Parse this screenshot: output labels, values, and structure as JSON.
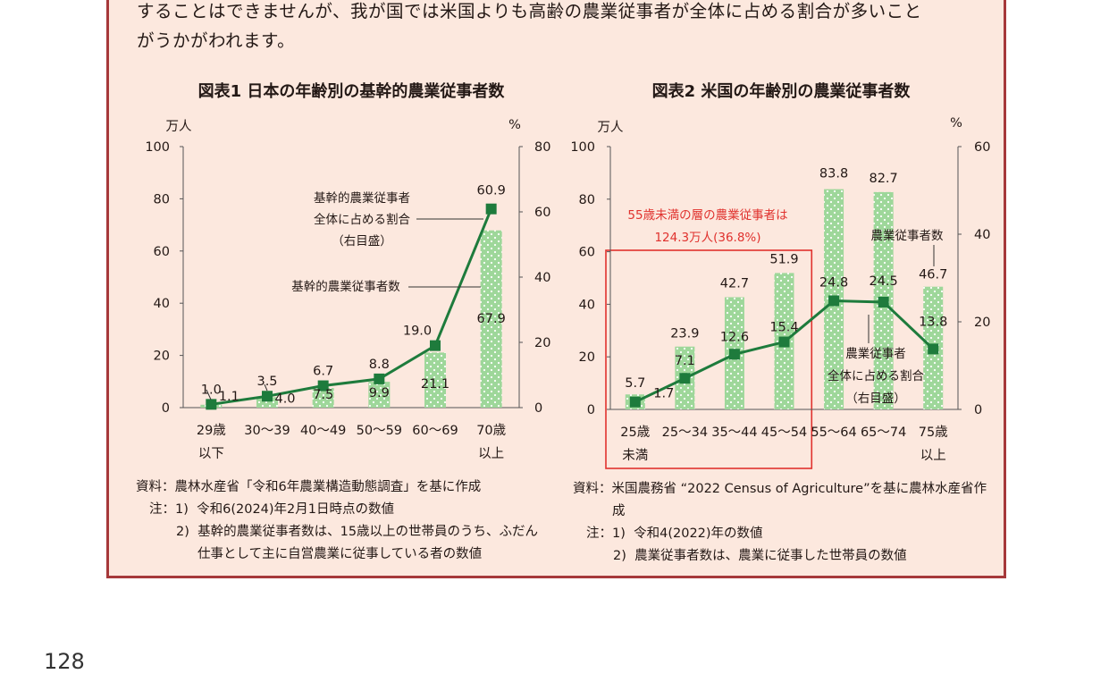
{
  "intro": {
    "line1": "することはできませんが、我が国では米国よりも高齢の農業従事者が全体に占める割合が多いこと",
    "line2": "がうかがわれます。"
  },
  "colors": {
    "bar": "#9ed79a",
    "bar_dots": "#ffffff",
    "line": "#1e7b3c",
    "marker": "#1e7b3c",
    "highlight": "#e0322e",
    "frame": "#a6383a",
    "panel": "#fce8de"
  },
  "chart_data": [
    {
      "type": "bar",
      "title": "図表1  日本の年齢別の基幹的農業従事者数",
      "left_unit": "万人",
      "right_unit": "%",
      "left_ticks": [
        "0",
        "20",
        "40",
        "60",
        "80",
        "100"
      ],
      "right_ticks": [
        "0",
        "20",
        "40",
        "60",
        "80"
      ],
      "ylim": [
        0,
        100
      ],
      "y2lim": [
        0,
        80
      ],
      "categories": [
        [
          "29歳",
          "以下"
        ],
        [
          "30～39"
        ],
        [
          "40～49"
        ],
        [
          "50～59"
        ],
        [
          "60～69"
        ],
        [
          "70歳",
          "以上"
        ]
      ],
      "series": [
        {
          "name": "基幹的農業従事者数",
          "kind": "bar",
          "axis": "left",
          "values": [
            1.1,
            4.0,
            7.5,
            9.9,
            21.1,
            67.9
          ],
          "labels": [
            "1.1",
            "4.0",
            "7.5",
            "9.9",
            "21.1",
            "67.9"
          ]
        },
        {
          "name": "基幹的農業従事者全体に占める割合（右目盛）",
          "kind": "line",
          "axis": "right",
          "values": [
            1.0,
            3.5,
            6.7,
            8.8,
            19.0,
            60.9
          ],
          "labels": [
            "1.0",
            "3.5",
            "6.7",
            "8.8",
            "19.0",
            "60.9"
          ]
        }
      ],
      "annotations": {
        "line_label": [
          "基幹的農業従事者",
          "全体に占める割合",
          "（右目盛）"
        ],
        "bar_label": "基幹的農業従事者数"
      }
    },
    {
      "type": "bar",
      "title": "図表2  米国の年齢別の農業従事者数",
      "left_unit": "万人",
      "right_unit": "%",
      "left_ticks": [
        "0",
        "20",
        "40",
        "60",
        "80",
        "100"
      ],
      "right_ticks": [
        "0",
        "20",
        "40",
        "60"
      ],
      "ylim": [
        0,
        100
      ],
      "y2lim": [
        0,
        60
      ],
      "categories": [
        [
          "25歳",
          "未満"
        ],
        [
          "25～34"
        ],
        [
          "35～44"
        ],
        [
          "45～54"
        ],
        [
          "55～64"
        ],
        [
          "65～74"
        ],
        [
          "75歳",
          "以上"
        ]
      ],
      "series": [
        {
          "name": "農業従事者数",
          "kind": "bar",
          "axis": "left",
          "values": [
            5.7,
            23.9,
            42.7,
            51.9,
            83.8,
            82.7,
            46.7
          ],
          "labels": [
            "5.7",
            "23.9",
            "42.7",
            "51.9",
            "83.8",
            "82.7",
            "46.7"
          ]
        },
        {
          "name": "農業従事者全体に占める割合（右目盛）",
          "kind": "line",
          "axis": "right",
          "values": [
            1.7,
            7.1,
            12.6,
            15.4,
            24.8,
            24.5,
            13.8
          ],
          "labels": [
            "1.7",
            "7.1",
            "12.6",
            "15.4",
            "24.8",
            "24.5",
            "13.8"
          ]
        }
      ],
      "highlight": {
        "categories": 4,
        "text": [
          "55歳未満の層の農業従事者は",
          "124.3万人(36.8%)"
        ]
      },
      "annotations": {
        "line_label": [
          "農業従事者",
          "全体に占める割合",
          "（右目盛）"
        ],
        "bar_label": "農業従事者数"
      }
    }
  ],
  "notes1": {
    "source_label": "資料：",
    "source": "農林水産省「令和6年農業構造動態調査」を基に作成",
    "note_label": "注：",
    "n1_num": "1)",
    "n1": "令和6(2024)年2月1日時点の数値",
    "n2_num": "2)",
    "n2a": "基幹的農業従事者数は、15歳以上の世帯員のうち、ふだん",
    "n2b": "仕事として主に自営農業に従事している者の数値"
  },
  "notes2": {
    "source_label": "資料：",
    "source_a": "米国農務省 “2022 Census of Agriculture”を基に農林水産省作",
    "source_b": "成",
    "note_label": "注：",
    "n1_num": "1)",
    "n1": "令和4(2022)年の数値",
    "n2_num": "2)",
    "n2": "農業従事者数は、農業に従事した世帯員の数値"
  },
  "page_number": "128"
}
